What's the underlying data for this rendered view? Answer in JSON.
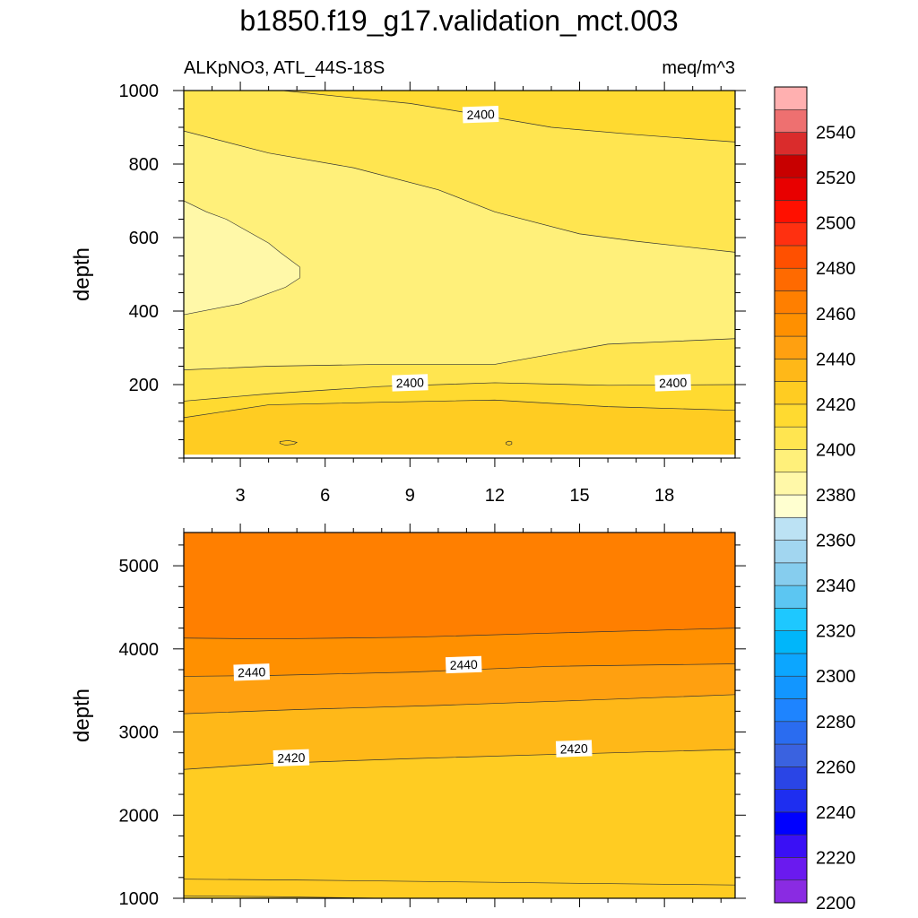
{
  "title": "b1850.f19_g17.validation_mct.003",
  "subtitle_left": "ALKpNO3, ATL_44S-18S",
  "subtitle_right": "meq/m^3",
  "colorbar": {
    "levels": [
      2200,
      2210,
      2220,
      2230,
      2240,
      2250,
      2260,
      2270,
      2280,
      2290,
      2300,
      2310,
      2320,
      2330,
      2340,
      2350,
      2360,
      2370,
      2380,
      2390,
      2400,
      2410,
      2420,
      2430,
      2440,
      2450,
      2460,
      2470,
      2480,
      2490,
      2500,
      2510,
      2520,
      2530,
      2540,
      2550
    ],
    "tick_labels": [
      "2200",
      "2220",
      "2240",
      "2260",
      "2280",
      "2300",
      "2320",
      "2340",
      "2360",
      "2380",
      "2400",
      "2420",
      "2440",
      "2460",
      "2480",
      "2500",
      "2520",
      "2540"
    ],
    "colors": [
      "#8A2BE2",
      "#6A1AEF",
      "#3A10F5",
      "#0000FF",
      "#1E2EF0",
      "#2A45E6",
      "#3A62E0",
      "#2A6CF0",
      "#1E84FF",
      "#1296FF",
      "#0CA6FF",
      "#00B6FA",
      "#1EC8FF",
      "#5CC6F2",
      "#86CDEE",
      "#A2D6F0",
      "#BCE2F4",
      "#FFFFD0",
      "#FFF8A8",
      "#FFF07A",
      "#FFE550",
      "#FFDA30",
      "#FFCC22",
      "#FFB818",
      "#FFA010",
      "#FF9000",
      "#FF7F00",
      "#FF6A00",
      "#FF5000",
      "#FF3010",
      "#FF1000",
      "#E80000",
      "#C80000",
      "#DA2C2C",
      "#EE7070",
      "#FFB0B0"
    ]
  },
  "chart_data": [
    {
      "type": "heatmap",
      "name": "upper",
      "ylabel": "depth",
      "xlabel": "",
      "xlim": [
        1,
        20.5
      ],
      "ylim": [
        1000,
        0
      ],
      "xticks": [
        3,
        6,
        9,
        12,
        15,
        18
      ],
      "yticks": [
        200,
        400,
        600,
        800,
        1000
      ],
      "regions": [
        {
          "level": 2420,
          "top": [
            [
              1,
              10
            ],
            [
              20.5,
              10
            ]
          ],
          "bottom": [
            [
              1,
              110
            ],
            [
              4,
              145
            ],
            [
              8,
              152
            ],
            [
              12,
              158
            ],
            [
              16,
              140
            ],
            [
              20.5,
              130
            ]
          ]
        },
        {
          "level": 2410,
          "top": [
            [
              1,
              110
            ],
            [
              4,
              145
            ],
            [
              8,
              152
            ],
            [
              12,
              158
            ],
            [
              16,
              140
            ],
            [
              20.5,
              130
            ]
          ],
          "bottom": [
            [
              1,
              155
            ],
            [
              4,
              175
            ],
            [
              8,
              195
            ],
            [
              12,
              205
            ],
            [
              16,
              198
            ],
            [
              20.5,
              200
            ]
          ]
        },
        {
          "level": 2400,
          "top": [
            [
              1,
              155
            ],
            [
              4,
              175
            ],
            [
              8,
              195
            ],
            [
              12,
              205
            ],
            [
              16,
              198
            ],
            [
              20.5,
              200
            ]
          ],
          "bottom": [
            [
              1,
              240
            ],
            [
              4,
              250
            ],
            [
              8,
              255
            ],
            [
              12,
              255
            ],
            [
              16,
              310
            ],
            [
              20.5,
              325
            ]
          ]
        },
        {
          "level": 2390,
          "top": [
            [
              1,
              240
            ],
            [
              4,
              250
            ],
            [
              8,
              255
            ],
            [
              12,
              255
            ],
            [
              16,
              310
            ],
            [
              20.5,
              325
            ]
          ],
          "bottom": [
            [
              1,
              890
            ],
            [
              4,
              830
            ],
            [
              7,
              790
            ],
            [
              10,
              730
            ],
            [
              12,
              670
            ],
            [
              15,
              610
            ],
            [
              17,
              590
            ],
            [
              20.5,
              560
            ]
          ]
        },
        {
          "level": 2400,
          "top": [
            [
              1,
              890
            ],
            [
              4,
              830
            ],
            [
              7,
              790
            ],
            [
              10,
              730
            ],
            [
              12,
              670
            ],
            [
              15,
              610
            ],
            [
              17,
              590
            ],
            [
              20.5,
              560
            ]
          ],
          "bottom": [
            [
              1,
              1000
            ],
            [
              4.5,
              1000
            ],
            [
              7,
              980
            ],
            [
              9,
              965
            ],
            [
              11,
              940
            ],
            [
              14,
              900
            ],
            [
              17,
              880
            ],
            [
              20.5,
              860
            ]
          ]
        },
        {
          "level": 2410,
          "top": [
            [
              1,
              1000
            ],
            [
              4.5,
              1000
            ],
            [
              7,
              980
            ],
            [
              9,
              965
            ],
            [
              11,
              940
            ],
            [
              14,
              900
            ],
            [
              17,
              880
            ],
            [
              20.5,
              860
            ]
          ],
          "bottom": [
            [
              1,
              1000
            ],
            [
              20.5,
              1000
            ]
          ]
        }
      ],
      "patches": [
        {
          "level": 2380,
          "points": [
            [
              1,
              390
            ],
            [
              3,
              420
            ],
            [
              4.6,
              465
            ],
            [
              5.1,
              490
            ],
            [
              5.1,
              520
            ],
            [
              4.4,
              560
            ],
            [
              4,
              585
            ],
            [
              2.5,
              650
            ],
            [
              1.8,
              670
            ],
            [
              1,
              700
            ]
          ]
        }
      ],
      "small_contours": [
        {
          "points": [
            [
              4.4,
              40
            ],
            [
              4.6,
              35
            ],
            [
              4.9,
              38
            ],
            [
              5,
              43
            ],
            [
              4.7,
              48
            ],
            [
              4.4,
              45
            ]
          ]
        },
        {
          "points": [
            [
              12.4,
              38
            ],
            [
              12.5,
              35
            ],
            [
              12.6,
              38
            ],
            [
              12.6,
              44
            ],
            [
              12.5,
              46
            ],
            [
              12.4,
              43
            ]
          ]
        }
      ],
      "contour_labels": [
        {
          "text": "2400",
          "x": 9,
          "y": 205
        },
        {
          "text": "2400",
          "x": 18.3,
          "y": 205
        },
        {
          "text": "2400",
          "x": 11.5,
          "y": 935
        }
      ]
    },
    {
      "type": "heatmap",
      "name": "lower",
      "ylabel": "depth",
      "xlabel": "",
      "xlim": [
        1,
        20.5
      ],
      "ylim": [
        5400,
        1000
      ],
      "xticks": [
        3,
        6,
        9,
        12,
        15,
        18
      ],
      "yticks": [
        1000,
        2000,
        3000,
        4000,
        5000
      ],
      "regions": [
        {
          "level": 2410,
          "top": [
            [
              1,
              1000
            ],
            [
              20.5,
              1000
            ]
          ],
          "bottom": [
            [
              1,
              1030
            ],
            [
              4,
              1020
            ],
            [
              8,
              1000
            ],
            [
              20.5,
              1000
            ]
          ]
        },
        {
          "level": 2420,
          "top": [
            [
              1,
              1030
            ],
            [
              4,
              1020
            ],
            [
              8,
              1000
            ],
            [
              20.5,
              1000
            ]
          ],
          "bottom": [
            [
              1,
              1230
            ],
            [
              5,
              1220
            ],
            [
              10,
              1200
            ],
            [
              15,
              1180
            ],
            [
              20.5,
              1160
            ]
          ]
        },
        {
          "level": 2420,
          "top": [
            [
              1,
              1230
            ],
            [
              5,
              1220
            ],
            [
              10,
              1200
            ],
            [
              15,
              1180
            ],
            [
              20.5,
              1160
            ]
          ],
          "bottom": [
            [
              1,
              2550
            ],
            [
              4,
              2620
            ],
            [
              9,
              2680
            ],
            [
              14,
              2730
            ],
            [
              20.5,
              2790
            ]
          ]
        },
        {
          "level": 2430,
          "top": [
            [
              1,
              2550
            ],
            [
              4,
              2620
            ],
            [
              9,
              2680
            ],
            [
              14,
              2730
            ],
            [
              20.5,
              2790
            ]
          ],
          "bottom": [
            [
              1,
              3220
            ],
            [
              5,
              3270
            ],
            [
              10,
              3320
            ],
            [
              15,
              3380
            ],
            [
              20.5,
              3450
            ]
          ]
        },
        {
          "level": 2440,
          "top": [
            [
              1,
              3220
            ],
            [
              5,
              3270
            ],
            [
              10,
              3320
            ],
            [
              15,
              3380
            ],
            [
              20.5,
              3450
            ]
          ],
          "bottom": [
            [
              1,
              3670
            ],
            [
              4,
              3680
            ],
            [
              9,
              3720
            ],
            [
              14,
              3790
            ],
            [
              20.5,
              3820
            ]
          ]
        },
        {
          "level": 2450,
          "top": [
            [
              1,
              3670
            ],
            [
              4,
              3680
            ],
            [
              9,
              3720
            ],
            [
              14,
              3790
            ],
            [
              20.5,
              3820
            ]
          ],
          "bottom": [
            [
              1,
              4130
            ],
            [
              4,
              4120
            ],
            [
              9,
              4140
            ],
            [
              14,
              4190
            ],
            [
              20.5,
              4250
            ]
          ]
        },
        {
          "level": 2460,
          "top": [
            [
              1,
              4130
            ],
            [
              4,
              4120
            ],
            [
              9,
              4140
            ],
            [
              14,
              4190
            ],
            [
              20.5,
              4250
            ]
          ],
          "bottom": [
            [
              1,
              5400
            ],
            [
              20.5,
              5400
            ]
          ]
        }
      ],
      "patches": [],
      "small_contours": [],
      "contour_labels": [
        {
          "text": "2420",
          "x": 4.8,
          "y": 2690
        },
        {
          "text": "2420",
          "x": 14.8,
          "y": 2800
        },
        {
          "text": "2440",
          "x": 3.4,
          "y": 3720
        },
        {
          "text": "2440",
          "x": 10.9,
          "y": 3810
        }
      ]
    }
  ]
}
